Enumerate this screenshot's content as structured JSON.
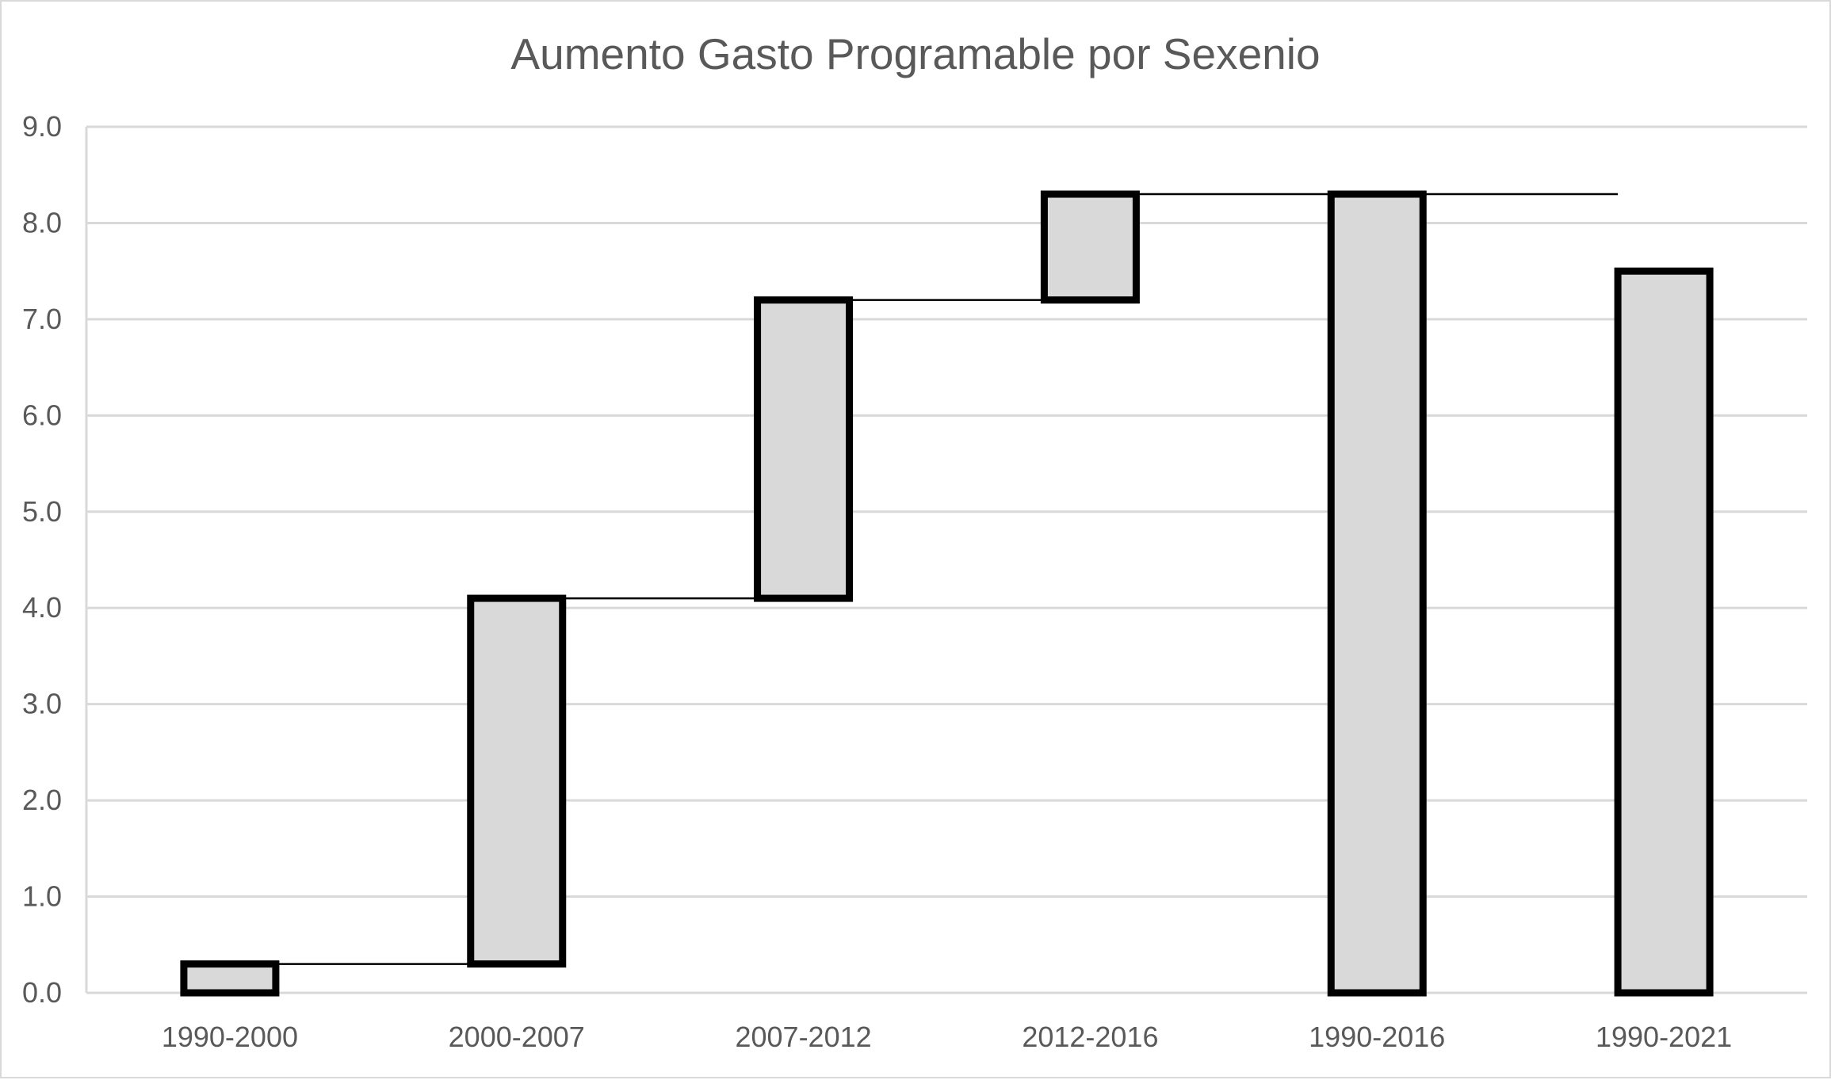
{
  "chart_data": {
    "type": "waterfall",
    "title": "Aumento Gasto Programable por Sexenio",
    "xlabel": "",
    "ylabel": "",
    "ylim": [
      0,
      9
    ],
    "yticks": [
      "0.0",
      "1.0",
      "2.0",
      "3.0",
      "4.0",
      "5.0",
      "6.0",
      "7.0",
      "8.0",
      "9.0"
    ],
    "grid": true,
    "legend": "none",
    "colors": {
      "bar_fill": "#d9d9d9",
      "bar_stroke": "#000000",
      "grid": "#d9d9d9",
      "connector": "#000000",
      "text": "#595959"
    },
    "categories": [
      "1990-2000",
      "2000-2007",
      "2007-2012",
      "2012-2016",
      "1990-2016",
      "1990-2021"
    ],
    "bars": [
      {
        "category": "1990-2000",
        "start": 0.0,
        "end": 0.3
      },
      {
        "category": "2000-2007",
        "start": 0.3,
        "end": 4.1
      },
      {
        "category": "2007-2012",
        "start": 4.1,
        "end": 7.2
      },
      {
        "category": "2012-2016",
        "start": 7.2,
        "end": 8.3
      },
      {
        "category": "1990-2016",
        "start": 0.0,
        "end": 8.3
      },
      {
        "category": "1990-2021",
        "start": 0.0,
        "end": 7.5
      }
    ]
  }
}
